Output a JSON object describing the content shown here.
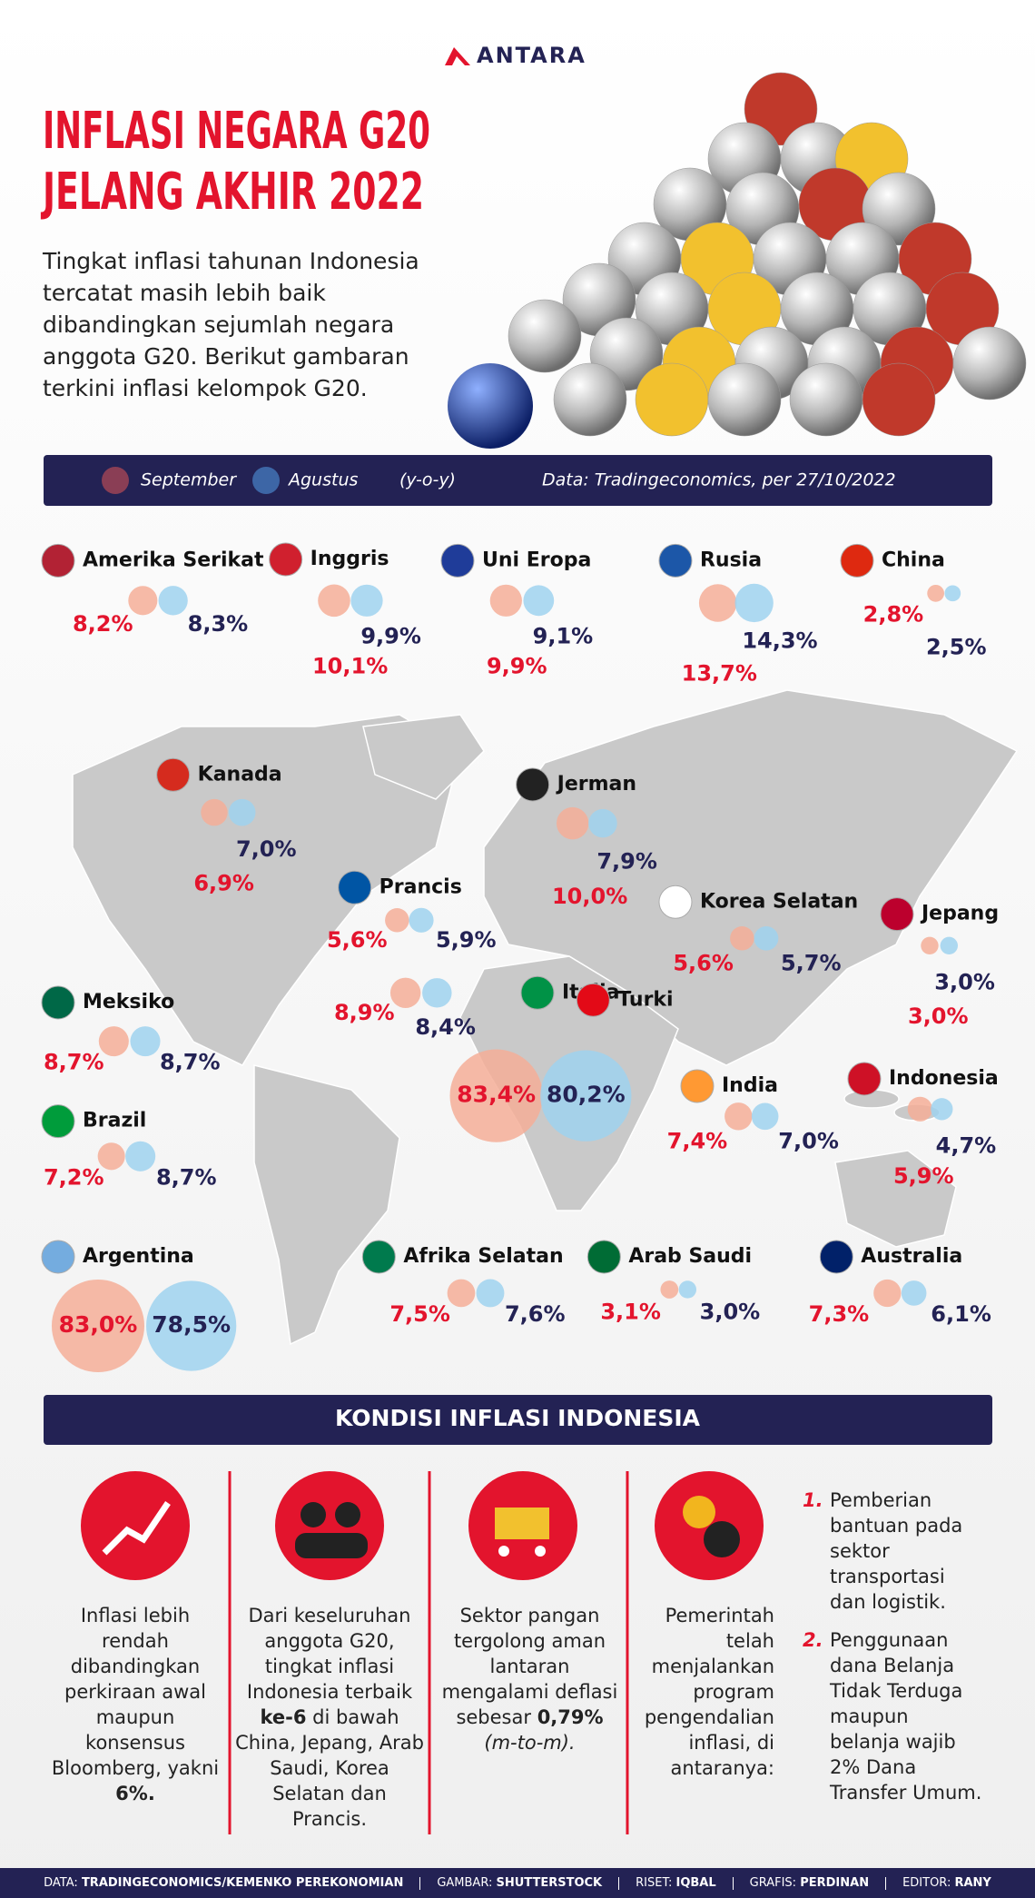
{
  "header": {
    "logo": "ANTARA",
    "title_lines": [
      "INFLASI NEGARA G20",
      "JELANG AKHIR 2022"
    ],
    "intro": "Tingkat inflasi tahunan Indonesia tercatat masih lebih baik dibandingkan sejumlah negara anggota G20. Berikut gambaran terkini inflasi kelompok G20."
  },
  "legend": {
    "september": "September",
    "agustus": "Agustus",
    "basis": "(y-o-y)",
    "source": "Data: Tradingeconomics, per 27/10/2022"
  },
  "countries": [
    {
      "name": "Amerika Serikat",
      "september": {
        "value": 8.2,
        "label": "8,2%"
      },
      "agustus": {
        "value": 8.3,
        "label": "8,3%"
      }
    },
    {
      "name": "Inggris",
      "september": {
        "value": 10.1,
        "label": "10,1%"
      },
      "agustus": {
        "value": 9.9,
        "label": "9,9%"
      }
    },
    {
      "name": "Uni Eropa",
      "september": {
        "value": 9.9,
        "label": "9,9%"
      },
      "agustus": {
        "value": 9.1,
        "label": "9,1%"
      }
    },
    {
      "name": "Rusia",
      "september": {
        "value": 13.7,
        "label": "13,7%"
      },
      "agustus": {
        "value": 14.3,
        "label": "14,3%"
      }
    },
    {
      "name": "China",
      "september": {
        "value": 2.8,
        "label": "2,8%"
      },
      "agustus": {
        "value": 2.5,
        "label": "2,5%"
      }
    },
    {
      "name": "Kanada",
      "september": {
        "value": 6.9,
        "label": "6,9%"
      },
      "agustus": {
        "value": 7.0,
        "label": "7,0%"
      }
    },
    {
      "name": "Jerman",
      "september": {
        "value": 10.0,
        "label": "10,0%"
      },
      "agustus": {
        "value": 7.9,
        "label": "7,9%"
      }
    },
    {
      "name": "Prancis",
      "september": {
        "value": 5.6,
        "label": "5,6%"
      },
      "agustus": {
        "value": 5.9,
        "label": "5,9%"
      }
    },
    {
      "name": "Korea Selatan",
      "september": {
        "value": 5.6,
        "label": "5,6%"
      },
      "agustus": {
        "value": 5.7,
        "label": "5,7%"
      }
    },
    {
      "name": "Jepang",
      "september": {
        "value": 3.0,
        "label": "3,0%"
      },
      "agustus": {
        "value": 3.0,
        "label": "3,0%"
      }
    },
    {
      "name": "Meksiko",
      "september": {
        "value": 8.7,
        "label": "8,7%"
      },
      "agustus": {
        "value": 8.7,
        "label": "8,7%"
      }
    },
    {
      "name": "Italia",
      "september": {
        "value": 8.9,
        "label": "8,9%"
      },
      "agustus": {
        "value": 8.4,
        "label": "8,4%"
      }
    },
    {
      "name": "Turki",
      "september": {
        "value": 83.4,
        "label": "83,4%"
      },
      "agustus": {
        "value": 80.2,
        "label": "80,2%"
      }
    },
    {
      "name": "India",
      "september": {
        "value": 7.4,
        "label": "7,4%"
      },
      "agustus": {
        "value": 7.0,
        "label": "7,0%"
      }
    },
    {
      "name": "Indonesia",
      "september": {
        "value": 5.9,
        "label": "5,9%"
      },
      "agustus": {
        "value": 4.7,
        "label": "4,7%"
      }
    },
    {
      "name": "Brazil",
      "september": {
        "value": 7.2,
        "label": "7,2%"
      },
      "agustus": {
        "value": 8.7,
        "label": "8,7%"
      }
    },
    {
      "name": "Argentina",
      "september": {
        "value": 83.0,
        "label": "83,0%"
      },
      "agustus": {
        "value": 78.5,
        "label": "78,5%"
      }
    },
    {
      "name": "Afrika Selatan",
      "september": {
        "value": 7.5,
        "label": "7,5%"
      },
      "agustus": {
        "value": 7.6,
        "label": "7,6%"
      }
    },
    {
      "name": "Arab Saudi",
      "september": {
        "value": 3.1,
        "label": "3,1%"
      },
      "agustus": {
        "value": 3.0,
        "label": "3,0%"
      }
    },
    {
      "name": "Australia",
      "september": {
        "value": 7.3,
        "label": "7,3%"
      },
      "agustus": {
        "value": 6.1,
        "label": "6,1%"
      }
    }
  ],
  "colors": {
    "september": "#f4ae98",
    "agustus": "#9fd2ee",
    "september_text": "#e3142d",
    "agustus_text": "#232254"
  },
  "indonesia": {
    "heading": "KONDISI INFLASI INDONESIA",
    "points": [
      {
        "segments": [
          {
            "text": "Inflasi lebih rendah dibandingkan perkiraan awal maupun konsensus Bloomberg, yakni",
            "style": "normal"
          },
          {
            "text": "6%.",
            "style": "bold"
          }
        ]
      },
      {
        "segments": [
          {
            "text": "Dari keseluruhan anggota G20, tingkat inflasi Indonesia terbaik",
            "style": "normal"
          },
          {
            "text": "ke-6",
            "style": "bold"
          },
          {
            "text": "di bawah China, Jepang, Arab Saudi, Korea Selatan dan Prancis.",
            "style": "normal"
          }
        ]
      },
      {
        "segments": [
          {
            "text": "Sektor pangan tergolong aman lantaran mengalami deflasi sebesar",
            "style": "normal"
          },
          {
            "text": "0,79%",
            "style": "bold"
          },
          {
            "text": "(m-to-m).",
            "style": "italic"
          }
        ]
      },
      {
        "segments": [
          {
            "text": "Pemerintah telah menjalankan program pengendalian inflasi, di antaranya:",
            "style": "normal"
          }
        ]
      }
    ],
    "programs": [
      {
        "number": "1.",
        "segments": [
          {
            "text": "Pemberian bantuan pada sektor transportasi dan logistik.",
            "style": "normal"
          }
        ]
      },
      {
        "number": "2.",
        "segments": [
          {
            "text": "Penggunaan dana Belanja Tidak Terduga maupun belanja wajib",
            "style": "normal"
          },
          {
            "text": "2%",
            "style": "bold"
          },
          {
            "text": "Dana Transfer Umum.",
            "style": "normal"
          }
        ]
      }
    ]
  },
  "credits": [
    {
      "label": "DATA:",
      "value": "TRADINGECONOMICS/KEMENKO PEREKONOMIAN"
    },
    {
      "label": "GAMBAR:",
      "value": "SHUTTERSTOCK"
    },
    {
      "label": "RISET:",
      "value": "IQBAL"
    },
    {
      "label": "GRAFIS:",
      "value": "PERDINAN"
    },
    {
      "label": "EDITOR:",
      "value": "RANY"
    }
  ]
}
